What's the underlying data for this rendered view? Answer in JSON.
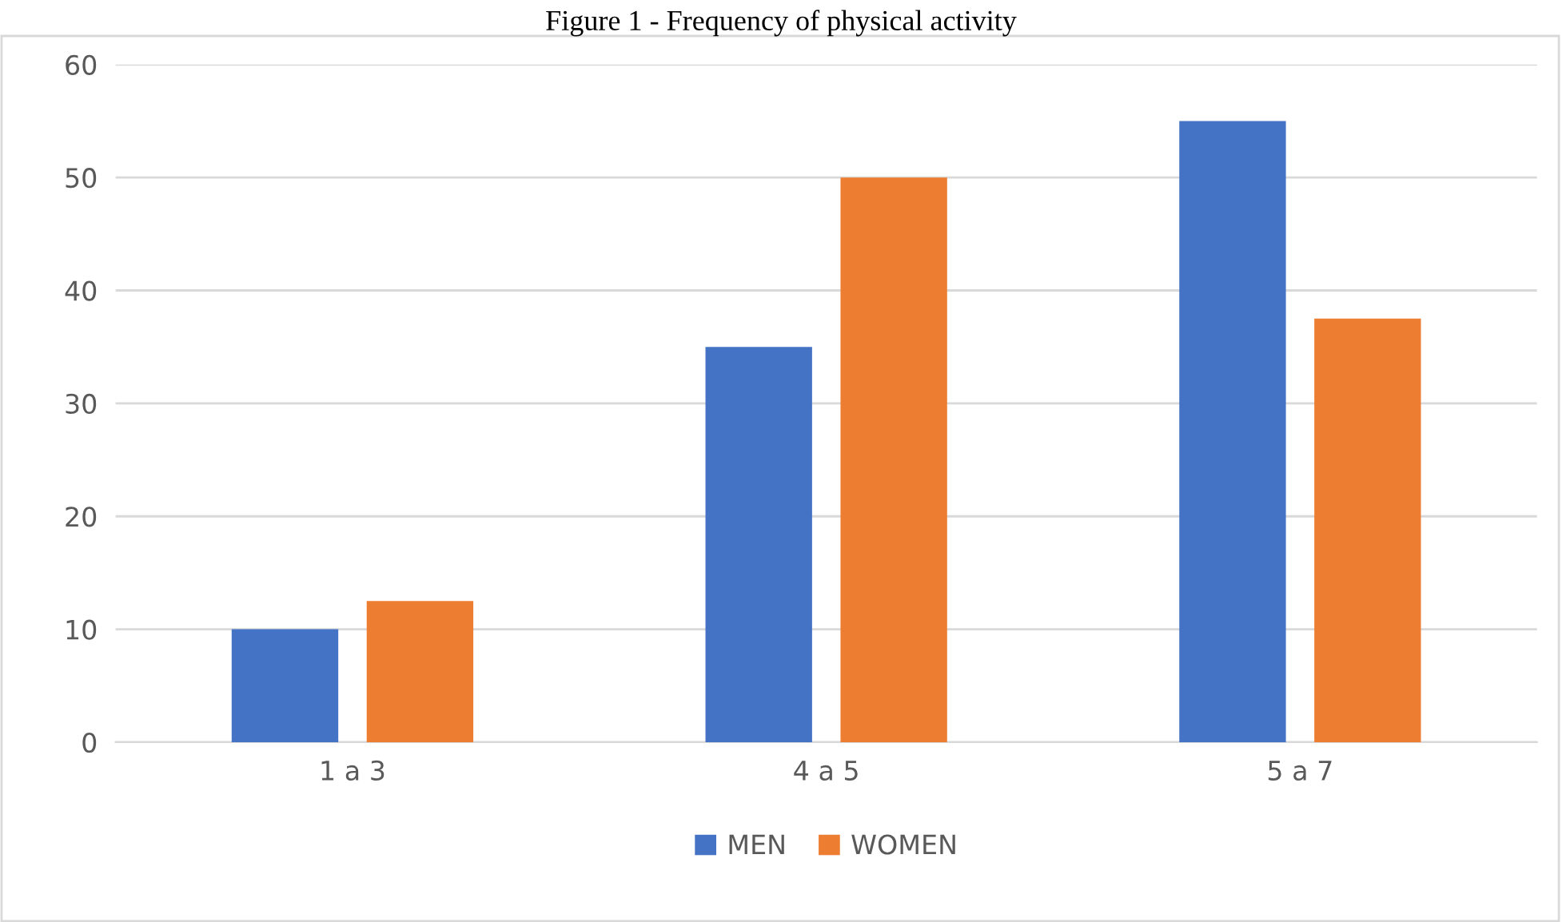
{
  "chart_data": {
    "type": "bar",
    "title": "Figure 1 - Frequency of physical activity",
    "categories": [
      "1 a 3",
      "4 a 5",
      "5 a 7"
    ],
    "series": [
      {
        "name": "MEN",
        "color": "#4472c4",
        "values": [
          10,
          35,
          55
        ]
      },
      {
        "name": "WOMEN",
        "color": "#ed7d31",
        "values": [
          12.5,
          50,
          37.5
        ]
      }
    ],
    "ylim": [
      0,
      60
    ],
    "yticks": [
      0,
      10,
      20,
      30,
      40,
      50,
      60
    ],
    "grid": "y",
    "legend": "bottom"
  }
}
